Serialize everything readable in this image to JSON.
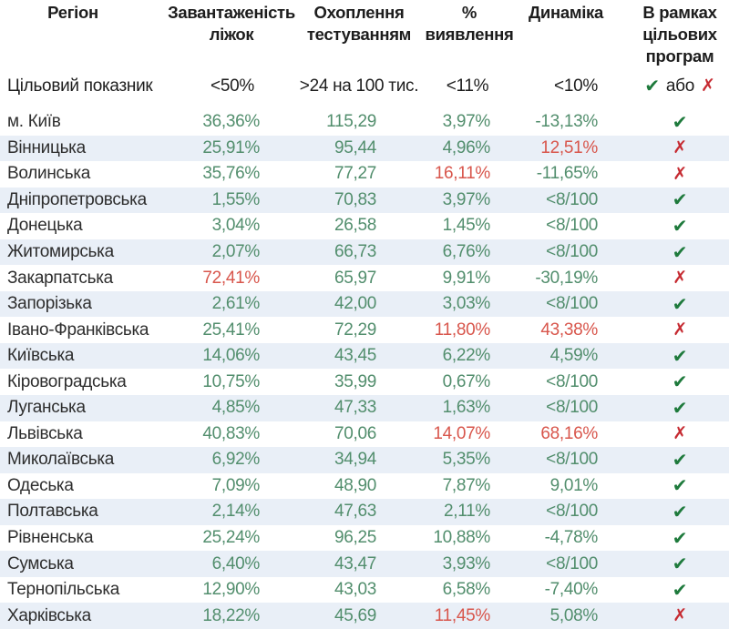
{
  "icons": {
    "check": "✔",
    "cross": "✗"
  },
  "chart_data": {
    "type": "table",
    "columns": [
      {
        "label": "Регіон"
      },
      {
        "label": "Завантаженість\nліжок"
      },
      {
        "label": "Охоплення\nтестуванням"
      },
      {
        "label": "%\nвиявлення"
      },
      {
        "label": "Динаміка"
      },
      {
        "label": "В рамках\nцільових\nпрограм"
      }
    ],
    "target_row": {
      "label": "Цільовий показник",
      "beds": "<50%",
      "testing": ">24 на 100 тис.",
      "detection": "<11%",
      "dynamics": "<10%",
      "or_label": "або"
    },
    "rows": [
      {
        "region": "м. Київ",
        "beds": {
          "text": "36,36%",
          "alert": false
        },
        "testing": {
          "text": "115,29",
          "alert": false
        },
        "detection": {
          "text": "3,97%",
          "alert": false
        },
        "dynamics": {
          "text": "-13,13%",
          "alert": false
        },
        "status": "check"
      },
      {
        "region": "Вінницька",
        "beds": {
          "text": "25,91%",
          "alert": false
        },
        "testing": {
          "text": "95,44",
          "alert": false
        },
        "detection": {
          "text": "4,96%",
          "alert": false
        },
        "dynamics": {
          "text": "12,51%",
          "alert": true
        },
        "status": "cross"
      },
      {
        "region": "Волинська",
        "beds": {
          "text": "35,76%",
          "alert": false
        },
        "testing": {
          "text": "77,27",
          "alert": false
        },
        "detection": {
          "text": "16,11%",
          "alert": true
        },
        "dynamics": {
          "text": "-11,65%",
          "alert": false
        },
        "status": "cross"
      },
      {
        "region": "Дніпропетровська",
        "beds": {
          "text": "1,55%",
          "alert": false
        },
        "testing": {
          "text": "70,83",
          "alert": false
        },
        "detection": {
          "text": "3,97%",
          "alert": false
        },
        "dynamics": {
          "text": "<8/100",
          "alert": false
        },
        "status": "check"
      },
      {
        "region": "Донецька",
        "beds": {
          "text": "3,04%",
          "alert": false
        },
        "testing": {
          "text": "26,58",
          "alert": false
        },
        "detection": {
          "text": "1,45%",
          "alert": false
        },
        "dynamics": {
          "text": "<8/100",
          "alert": false
        },
        "status": "check"
      },
      {
        "region": "Житомирська",
        "beds": {
          "text": "2,07%",
          "alert": false
        },
        "testing": {
          "text": "66,73",
          "alert": false
        },
        "detection": {
          "text": "6,76%",
          "alert": false
        },
        "dynamics": {
          "text": "<8/100",
          "alert": false
        },
        "status": "check"
      },
      {
        "region": "Закарпатська",
        "beds": {
          "text": "72,41%",
          "alert": true
        },
        "testing": {
          "text": "65,97",
          "alert": false
        },
        "detection": {
          "text": "9,91%",
          "alert": false
        },
        "dynamics": {
          "text": "-30,19%",
          "alert": false
        },
        "status": "cross"
      },
      {
        "region": "Запорізька",
        "beds": {
          "text": "2,61%",
          "alert": false
        },
        "testing": {
          "text": "42,00",
          "alert": false
        },
        "detection": {
          "text": "3,03%",
          "alert": false
        },
        "dynamics": {
          "text": "<8/100",
          "alert": false
        },
        "status": "check"
      },
      {
        "region": "Івано-Франківська",
        "beds": {
          "text": "25,41%",
          "alert": false
        },
        "testing": {
          "text": "72,29",
          "alert": false
        },
        "detection": {
          "text": "11,80%",
          "alert": true
        },
        "dynamics": {
          "text": "43,38%",
          "alert": true
        },
        "status": "cross"
      },
      {
        "region": "Київська",
        "beds": {
          "text": "14,06%",
          "alert": false
        },
        "testing": {
          "text": "43,45",
          "alert": false
        },
        "detection": {
          "text": "6,22%",
          "alert": false
        },
        "dynamics": {
          "text": "4,59%",
          "alert": false
        },
        "status": "check"
      },
      {
        "region": "Кіровоградська",
        "beds": {
          "text": "10,75%",
          "alert": false
        },
        "testing": {
          "text": "35,99",
          "alert": false
        },
        "detection": {
          "text": "0,67%",
          "alert": false
        },
        "dynamics": {
          "text": "<8/100",
          "alert": false
        },
        "status": "check"
      },
      {
        "region": "Луганська",
        "beds": {
          "text": "4,85%",
          "alert": false
        },
        "testing": {
          "text": "47,33",
          "alert": false
        },
        "detection": {
          "text": "1,63%",
          "alert": false
        },
        "dynamics": {
          "text": "<8/100",
          "alert": false
        },
        "status": "check"
      },
      {
        "region": "Львівська",
        "beds": {
          "text": "40,83%",
          "alert": false
        },
        "testing": {
          "text": "70,06",
          "alert": false
        },
        "detection": {
          "text": "14,07%",
          "alert": true
        },
        "dynamics": {
          "text": "68,16%",
          "alert": true
        },
        "status": "cross"
      },
      {
        "region": "Миколаївська",
        "beds": {
          "text": "6,92%",
          "alert": false
        },
        "testing": {
          "text": "34,94",
          "alert": false
        },
        "detection": {
          "text": "5,35%",
          "alert": false
        },
        "dynamics": {
          "text": "<8/100",
          "alert": false
        },
        "status": "check"
      },
      {
        "region": "Одеська",
        "beds": {
          "text": "7,09%",
          "alert": false
        },
        "testing": {
          "text": "48,90",
          "alert": false
        },
        "detection": {
          "text": "7,87%",
          "alert": false
        },
        "dynamics": {
          "text": "9,01%",
          "alert": false
        },
        "status": "check"
      },
      {
        "region": "Полтавська",
        "beds": {
          "text": "2,14%",
          "alert": false
        },
        "testing": {
          "text": "47,63",
          "alert": false
        },
        "detection": {
          "text": "2,11%",
          "alert": false
        },
        "dynamics": {
          "text": "<8/100",
          "alert": false
        },
        "status": "check"
      },
      {
        "region": "Рівненська",
        "beds": {
          "text": "25,24%",
          "alert": false
        },
        "testing": {
          "text": "96,25",
          "alert": false
        },
        "detection": {
          "text": "10,88%",
          "alert": false
        },
        "dynamics": {
          "text": "-4,78%",
          "alert": false
        },
        "status": "check"
      },
      {
        "region": "Сумська",
        "beds": {
          "text": "6,40%",
          "alert": false
        },
        "testing": {
          "text": "43,47",
          "alert": false
        },
        "detection": {
          "text": "3,93%",
          "alert": false
        },
        "dynamics": {
          "text": "<8/100",
          "alert": false
        },
        "status": "check"
      },
      {
        "region": "Тернопільська",
        "beds": {
          "text": "12,90%",
          "alert": false
        },
        "testing": {
          "text": "43,03",
          "alert": false
        },
        "detection": {
          "text": "6,58%",
          "alert": false
        },
        "dynamics": {
          "text": "-7,40%",
          "alert": false
        },
        "status": "check"
      },
      {
        "region": "Харківська",
        "beds": {
          "text": "18,22%",
          "alert": false
        },
        "testing": {
          "text": "45,69",
          "alert": false
        },
        "detection": {
          "text": "11,45%",
          "alert": true
        },
        "dynamics": {
          "text": "5,08%",
          "alert": false
        },
        "status": "cross"
      }
    ],
    "colors": {
      "value_ok": "#528e6d",
      "value_alert": "#d8564c",
      "check": "#1e7a3c",
      "cross": "#c62b32",
      "alt_row_bg": "#e9eff7"
    }
  }
}
